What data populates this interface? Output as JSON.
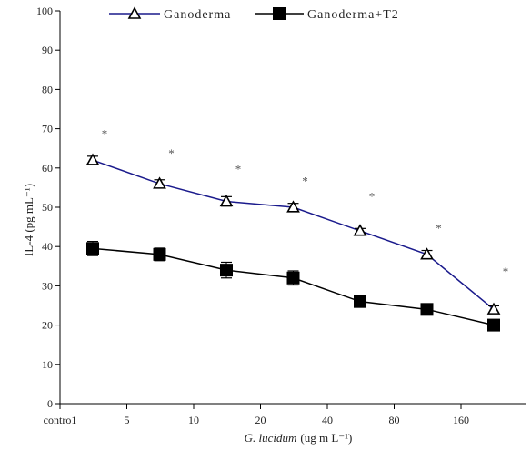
{
  "chart_data": {
    "type": "line",
    "xlabel_italic": "G. lucidum",
    "xlabel_unit": "(ug m L⁻¹)",
    "ylabel": "IL-4 (pg mL⁻¹)",
    "ylim": [
      0,
      100
    ],
    "y_ticks": [
      "0",
      "10",
      "20",
      "30",
      "40",
      "50",
      "60",
      "70",
      "80",
      "90",
      "100"
    ],
    "x_tick_labels": [
      "contro1",
      "5",
      "10",
      "20",
      "40",
      "80",
      "160"
    ],
    "grid": false,
    "legend_position": "top",
    "series": [
      {
        "name": "Ganoderma",
        "marker": "open-triangle",
        "color": "#1a1a8c",
        "values": [
          62,
          56,
          51.5,
          50,
          44,
          38,
          24
        ],
        "errors": [
          1,
          1,
          1.2,
          1,
          0.6,
          1,
          0.9
        ]
      },
      {
        "name": "Ganoderma+T2",
        "marker": "filled-square",
        "color": "#000000",
        "values": [
          39.5,
          38,
          34,
          32,
          26,
          24,
          20
        ],
        "errors": [
          1.8,
          1.6,
          2.0,
          1.8,
          0.6,
          0.6,
          1.0
        ]
      }
    ],
    "annotations": [
      {
        "text": "*",
        "y": 70
      },
      {
        "text": "*",
        "y": 65
      },
      {
        "text": "*",
        "y": 61
      },
      {
        "text": "*",
        "y": 58
      },
      {
        "text": "*",
        "y": 54
      },
      {
        "text": "*",
        "y": 46
      },
      {
        "text": "*",
        "y": 35
      }
    ]
  }
}
